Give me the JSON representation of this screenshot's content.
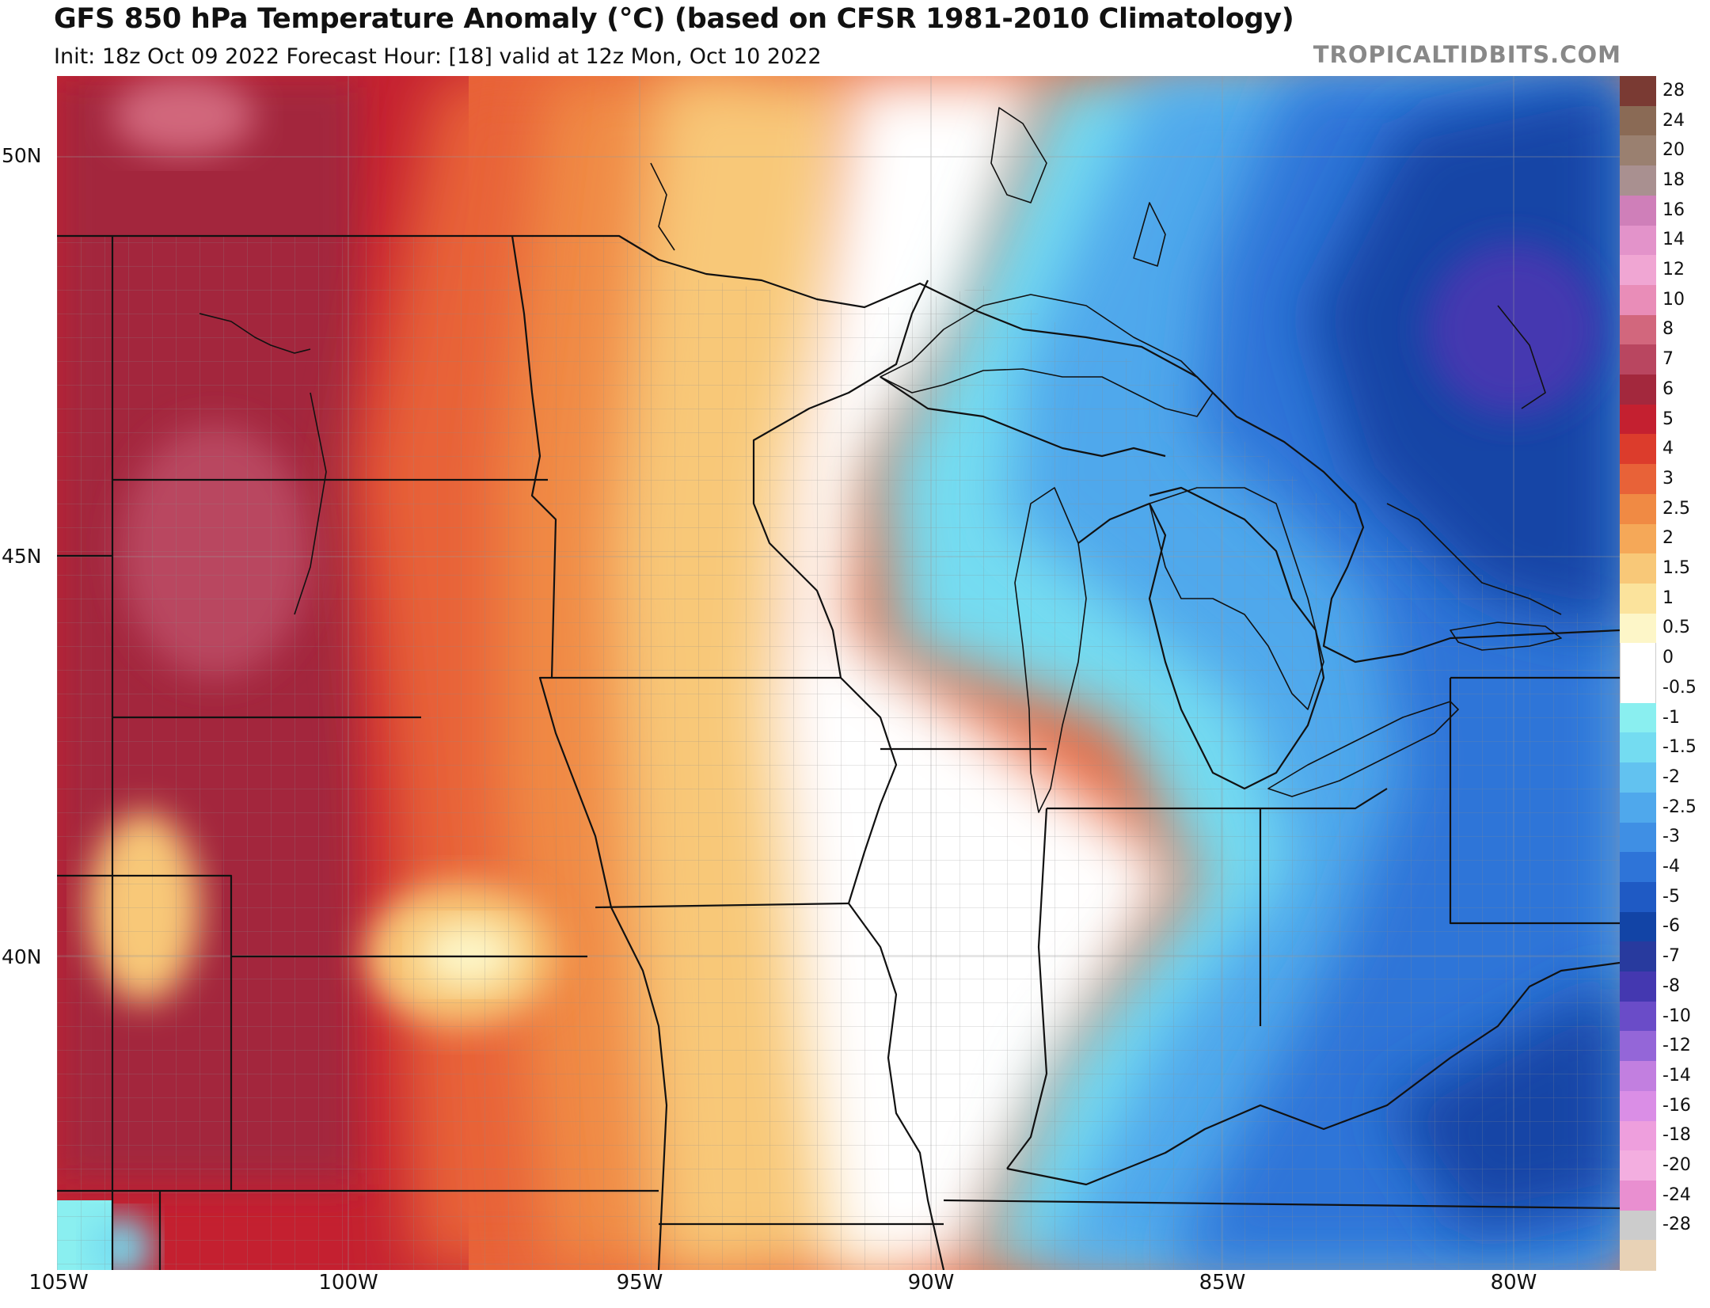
{
  "header": {
    "title": "GFS 850 hPa Temperature Anomaly (°C) (based on CFSR 1981-2010 Climatology)",
    "subtitle": "Init: 18z Oct 09 2022   Forecast Hour: [18]   valid at 12z Mon, Oct 10 2022",
    "brand": "TROPICALTIDBITS.COM"
  },
  "colorbar": {
    "levels": [
      {
        "label": "28",
        "color": "#7a3a33"
      },
      {
        "label": "24",
        "color": "#8a6a55"
      },
      {
        "label": "20",
        "color": "#9a8070"
      },
      {
        "label": "18",
        "color": "#a99090"
      },
      {
        "label": "16",
        "color": "#cf7fb9"
      },
      {
        "label": "14",
        "color": "#e393ca"
      },
      {
        "label": "12",
        "color": "#f0a6d3"
      },
      {
        "label": "10",
        "color": "#e98db8"
      },
      {
        "label": "8",
        "color": "#d2677d"
      },
      {
        "label": "7",
        "color": "#b94660"
      },
      {
        "label": "6",
        "color": "#a3283d"
      },
      {
        "label": "5",
        "color": "#c42030"
      },
      {
        "label": "4",
        "color": "#dc3c2c"
      },
      {
        "label": "3",
        "color": "#e86238"
      },
      {
        "label": "2.5",
        "color": "#f08a44"
      },
      {
        "label": "2",
        "color": "#f5a858"
      },
      {
        "label": "1.5",
        "color": "#f8c878"
      },
      {
        "label": "1",
        "color": "#fbe39c"
      },
      {
        "label": "0.5",
        "color": "#fdf6c8"
      },
      {
        "label": "0",
        "color": "#ffffff"
      },
      {
        "label": "-0.5",
        "color": "#ffffff"
      },
      {
        "label": "-1",
        "color": "#8aeff0"
      },
      {
        "label": "-1.5",
        "color": "#74dcf1"
      },
      {
        "label": "-2",
        "color": "#62c2f0"
      },
      {
        "label": "-2.5",
        "color": "#4fa8ec"
      },
      {
        "label": "-3",
        "color": "#3f8fe4"
      },
      {
        "label": "-4",
        "color": "#2e74d8"
      },
      {
        "label": "-5",
        "color": "#1f5ac4"
      },
      {
        "label": "-6",
        "color": "#1244a6"
      },
      {
        "label": "-7",
        "color": "#283a9e"
      },
      {
        "label": "-8",
        "color": "#4438b0"
      },
      {
        "label": "-10",
        "color": "#6a4cc8"
      },
      {
        "label": "-12",
        "color": "#9466d8"
      },
      {
        "label": "-14",
        "color": "#c27fe0"
      },
      {
        "label": "-16",
        "color": "#da8ee6"
      },
      {
        "label": "-18",
        "color": "#ee9fdd"
      },
      {
        "label": "-20",
        "color": "#f3aee0"
      },
      {
        "label": "-24",
        "color": "#e98fd0"
      },
      {
        "label": "-28",
        "color": "#cccccc"
      },
      {
        "label": "",
        "color": "#e8d2b6"
      }
    ]
  },
  "axes": {
    "lat_labels": [
      "50N",
      "45N",
      "40N"
    ],
    "lon_labels": [
      "105W",
      "100W",
      "95W",
      "90W",
      "85W",
      "80W"
    ]
  },
  "map": {
    "region": "Upper Midwest, Great Lakes and Ohio Valley",
    "anomaly_colors": {
      "warm_core": "#a3283d",
      "warm": "#dc3c2c",
      "mild": "#f5a858",
      "neutral": "#ffffff",
      "cool": "#62c2f0",
      "cold": "#1244a6"
    }
  }
}
